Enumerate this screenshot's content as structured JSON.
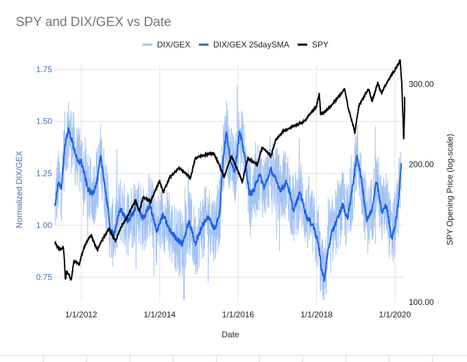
{
  "chart_data": {
    "type": "line",
    "title": "SPY and DIX/GEX vs Date",
    "xlabel": "Date",
    "ylabel_left": "Normalized DIX/GEX",
    "ylabel_right": "SPY Opening Price (log-scale)",
    "x_range": [
      "2011-05-01",
      "2020-03-31"
    ],
    "x_ticks": [
      "1/1/2012",
      "1/1/2014",
      "1/1/2016",
      "1/1/2018",
      "1/1/2020"
    ],
    "y_left_range": [
      0.63,
      1.77
    ],
    "y_left_ticks": [
      "0.75",
      "1.00",
      "1.25",
      "1.50",
      "1.75"
    ],
    "y_right_scale": "log",
    "y_right_range": [
      100,
      330
    ],
    "y_right_ticks": [
      "100.00",
      "200.00",
      "300.00"
    ],
    "grid": true,
    "legend_position": "top",
    "legend": [
      "DIX/GEX",
      "DIX/GEX 25daySMA",
      "SPY"
    ],
    "series": [
      {
        "name": "DIX/GEX",
        "axis": "left",
        "color": "#a4c2f4",
        "style": "noisy-daily",
        "base": "DIX/GEX 25daySMA"
      },
      {
        "name": "DIX/GEX 25daySMA",
        "axis": "left",
        "color": "#1a62e6",
        "points": [
          [
            "2011-05-01",
            1.09
          ],
          [
            "2011-06-01",
            1.2
          ],
          [
            "2011-07-01",
            1.18
          ],
          [
            "2011-08-01",
            1.38
          ],
          [
            "2011-09-01",
            1.46
          ],
          [
            "2011-10-01",
            1.42
          ],
          [
            "2011-11-01",
            1.36
          ],
          [
            "2011-12-01",
            1.3
          ],
          [
            "2012-01-01",
            1.31
          ],
          [
            "2012-02-01",
            1.24
          ],
          [
            "2012-03-01",
            1.18
          ],
          [
            "2012-04-01",
            1.15
          ],
          [
            "2012-05-01",
            1.17
          ],
          [
            "2012-06-01",
            1.22
          ],
          [
            "2012-07-01",
            1.33
          ],
          [
            "2012-08-01",
            1.22
          ],
          [
            "2012-09-01",
            1.1
          ],
          [
            "2012-10-01",
            0.97
          ],
          [
            "2012-11-01",
            0.96
          ],
          [
            "2012-12-01",
            1.02
          ],
          [
            "2013-01-01",
            1.08
          ],
          [
            "2013-03-01",
            1.02
          ],
          [
            "2013-05-01",
            1.06
          ],
          [
            "2013-06-01",
            1.1
          ],
          [
            "2013-08-01",
            1.03
          ],
          [
            "2013-10-01",
            1.1
          ],
          [
            "2013-12-01",
            0.97
          ],
          [
            "2014-02-01",
            1.05
          ],
          [
            "2014-04-01",
            0.98
          ],
          [
            "2014-06-01",
            0.94
          ],
          [
            "2014-08-01",
            0.91
          ],
          [
            "2014-10-01",
            1.02
          ],
          [
            "2014-12-01",
            0.91
          ],
          [
            "2015-02-01",
            1.0
          ],
          [
            "2015-04-01",
            1.04
          ],
          [
            "2015-06-01",
            0.98
          ],
          [
            "2015-07-15",
            1.07
          ],
          [
            "2015-08-15",
            1.32
          ],
          [
            "2015-09-15",
            1.45
          ],
          [
            "2015-10-15",
            1.33
          ],
          [
            "2015-12-01",
            1.26
          ],
          [
            "2016-01-15",
            1.45
          ],
          [
            "2016-03-01",
            1.34
          ],
          [
            "2016-04-15",
            1.15
          ],
          [
            "2016-06-01",
            1.17
          ],
          [
            "2016-07-15",
            1.25
          ],
          [
            "2016-09-01",
            1.18
          ],
          [
            "2016-11-01",
            1.27
          ],
          [
            "2016-12-15",
            1.22
          ],
          [
            "2017-02-01",
            1.17
          ],
          [
            "2017-04-01",
            1.21
          ],
          [
            "2017-06-01",
            1.07
          ],
          [
            "2017-08-01",
            1.16
          ],
          [
            "2017-10-01",
            1.04
          ],
          [
            "2017-12-01",
            1.0
          ],
          [
            "2018-01-15",
            0.92
          ],
          [
            "2018-02-15",
            0.79
          ],
          [
            "2018-03-15",
            0.74
          ],
          [
            "2018-04-15",
            0.87
          ],
          [
            "2018-06-01",
            0.98
          ],
          [
            "2018-07-15",
            1.03
          ],
          [
            "2018-09-01",
            1.1
          ],
          [
            "2018-10-15",
            1.03
          ],
          [
            "2018-12-01",
            1.18
          ],
          [
            "2019-01-15",
            1.34
          ],
          [
            "2019-03-01",
            1.2
          ],
          [
            "2019-04-15",
            1.02
          ],
          [
            "2019-06-01",
            1.08
          ],
          [
            "2019-07-15",
            1.22
          ],
          [
            "2019-09-01",
            1.06
          ],
          [
            "2019-10-15",
            1.1
          ],
          [
            "2019-12-01",
            0.93
          ],
          [
            "2020-01-01",
            1.0
          ],
          [
            "2020-02-01",
            1.1
          ],
          [
            "2020-03-01",
            1.31
          ]
        ]
      },
      {
        "name": "SPY",
        "axis": "right",
        "color": "#000000",
        "points": [
          [
            "2011-05-01",
            135
          ],
          [
            "2011-06-15",
            130
          ],
          [
            "2011-07-20",
            132
          ],
          [
            "2011-08-08",
            112
          ],
          [
            "2011-08-20",
            117
          ],
          [
            "2011-10-01",
            112
          ],
          [
            "2011-10-25",
            123
          ],
          [
            "2011-12-15",
            121
          ],
          [
            "2012-01-15",
            129
          ],
          [
            "2012-03-01",
            137
          ],
          [
            "2012-04-01",
            140
          ],
          [
            "2012-06-01",
            130
          ],
          [
            "2012-07-01",
            135
          ],
          [
            "2012-09-15",
            145
          ],
          [
            "2012-11-15",
            136
          ],
          [
            "2013-01-01",
            145
          ],
          [
            "2013-03-01",
            153
          ],
          [
            "2013-05-20",
            167
          ],
          [
            "2013-06-25",
            158
          ],
          [
            "2013-08-01",
            170
          ],
          [
            "2013-10-10",
            166
          ],
          [
            "2013-12-31",
            184
          ],
          [
            "2014-02-05",
            174
          ],
          [
            "2014-04-01",
            187
          ],
          [
            "2014-07-01",
            197
          ],
          [
            "2014-10-15",
            187
          ],
          [
            "2014-12-01",
            207
          ],
          [
            "2015-03-01",
            210
          ],
          [
            "2015-05-20",
            212
          ],
          [
            "2015-08-25",
            188
          ],
          [
            "2015-11-01",
            209
          ],
          [
            "2016-02-11",
            183
          ],
          [
            "2016-04-01",
            207
          ],
          [
            "2016-06-27",
            200
          ],
          [
            "2016-08-15",
            218
          ],
          [
            "2016-11-04",
            209
          ],
          [
            "2016-12-15",
            226
          ],
          [
            "2017-03-01",
            237
          ],
          [
            "2017-06-01",
            243
          ],
          [
            "2017-09-01",
            248
          ],
          [
            "2017-12-31",
            268
          ],
          [
            "2018-01-26",
            286
          ],
          [
            "2018-02-08",
            258
          ],
          [
            "2018-04-01",
            262
          ],
          [
            "2018-06-01",
            272
          ],
          [
            "2018-09-20",
            292
          ],
          [
            "2018-10-25",
            265
          ],
          [
            "2018-12-24",
            235
          ],
          [
            "2019-01-31",
            269
          ],
          [
            "2019-04-30",
            293
          ],
          [
            "2019-06-03",
            275
          ],
          [
            "2019-07-26",
            302
          ],
          [
            "2019-08-26",
            287
          ],
          [
            "2019-11-01",
            306
          ],
          [
            "2019-12-31",
            322
          ],
          [
            "2020-02-19",
            338
          ],
          [
            "2020-03-05",
            300
          ],
          [
            "2020-03-23",
            224
          ],
          [
            "2020-03-31",
            262
          ],
          [
            "2020-04-15",
            280
          ]
        ]
      }
    ]
  }
}
